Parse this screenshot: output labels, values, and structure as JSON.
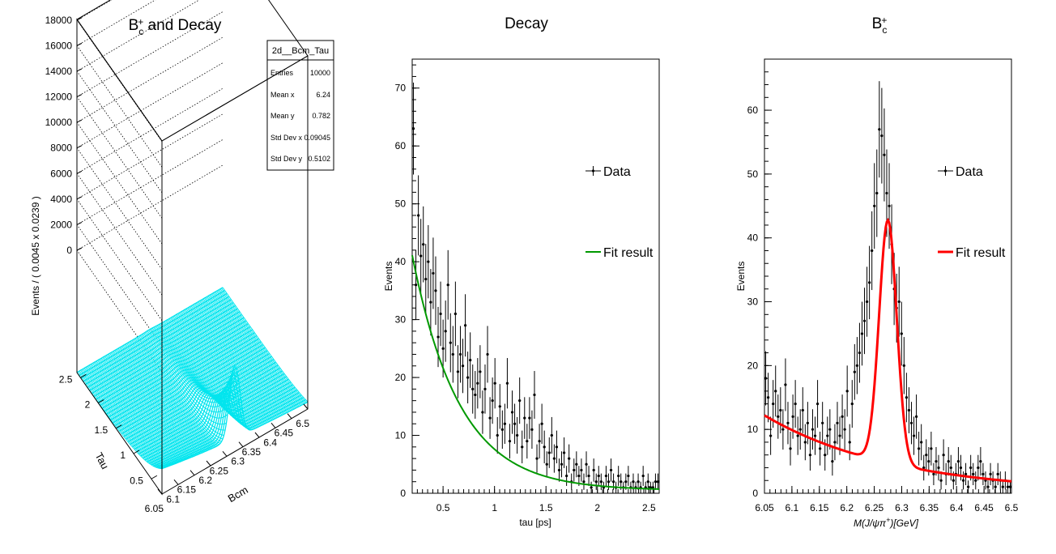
{
  "chart_data": [
    {
      "type": "surface",
      "title": "B_c^+ and Decay",
      "title_base": "B",
      "title_sub": "c",
      "title_sup": "+",
      "title_rest": " and Decay",
      "xlabel": "Bcm",
      "ylabel": "Tau",
      "zlabel": "Events / ( 0.0045 x 0.0239 )",
      "xlim": [
        6.05,
        6.5
      ],
      "ylim": [
        0.2,
        2.6
      ],
      "zlim": [
        0,
        19000
      ],
      "x_ticks": [
        "6.05",
        "6.1",
        "6.15",
        "6.2",
        "6.25",
        "6.3",
        "6.35",
        "6.4",
        "6.45",
        "6.5"
      ],
      "y_ticks": [
        "0.5",
        "1",
        "1.5",
        "2",
        "2.5"
      ],
      "z_ticks": [
        "0",
        "2000",
        "4000",
        "6000",
        "8000",
        "10000",
        "12000",
        "14000",
        "16000",
        "18000"
      ],
      "surface_color": "#00e5ee",
      "peak_x": 6.275,
      "peak_z": 10000,
      "grid": true,
      "stats_box": {
        "name": "2d__Bcm_Tau",
        "rows": [
          {
            "label": "Entries",
            "value": "10000"
          },
          {
            "label": "Mean x",
            "value": "6.24"
          },
          {
            "label": "Mean y",
            "value": "0.782"
          },
          {
            "label": "Std Dev x",
            "value": "0.09045"
          },
          {
            "label": "Std Dev y",
            "value": "0.5102"
          }
        ]
      }
    },
    {
      "type": "scatter",
      "title": "Decay",
      "xlabel": "tau [ps]",
      "ylabel": "Events",
      "xlim": [
        0.2,
        2.6
      ],
      "ylim": [
        0,
        75
      ],
      "x_ticks": [
        0.5,
        1,
        1.5,
        2,
        2.5
      ],
      "y_ticks": [
        0,
        10,
        20,
        30,
        40,
        50,
        60,
        70
      ],
      "grid": false,
      "legend": [
        {
          "label": "Data",
          "style": "points",
          "color": "#000000"
        },
        {
          "label": "Fit result",
          "style": "line",
          "color": "#009900"
        }
      ],
      "series": [
        {
          "name": "Data",
          "x": [
            0.212,
            0.236,
            0.26,
            0.284,
            0.308,
            0.332,
            0.356,
            0.38,
            0.404,
            0.428,
            0.452,
            0.476,
            0.5,
            0.524,
            0.548,
            0.572,
            0.596,
            0.62,
            0.644,
            0.668,
            0.692,
            0.716,
            0.74,
            0.764,
            0.788,
            0.812,
            0.836,
            0.86,
            0.884,
            0.908,
            0.932,
            0.956,
            0.98,
            1.004,
            1.028,
            1.052,
            1.076,
            1.1,
            1.124,
            1.148,
            1.172,
            1.196,
            1.22,
            1.244,
            1.268,
            1.292,
            1.316,
            1.34,
            1.364,
            1.388,
            1.412,
            1.436,
            1.46,
            1.484,
            1.508,
            1.532,
            1.556,
            1.58,
            1.604,
            1.628,
            1.652,
            1.676,
            1.7,
            1.724,
            1.748,
            1.772,
            1.796,
            1.82,
            1.844,
            1.868,
            1.892,
            1.916,
            1.94,
            1.964,
            1.988,
            2.012,
            2.036,
            2.06,
            2.084,
            2.108,
            2.132,
            2.156,
            2.18,
            2.204,
            2.228,
            2.252,
            2.276,
            2.3,
            2.324,
            2.348,
            2.372,
            2.396,
            2.42,
            2.444,
            2.468,
            2.492,
            2.516,
            2.54,
            2.564,
            2.588
          ],
          "y": [
            63,
            36,
            48,
            41,
            43,
            37,
            40,
            33,
            38,
            35,
            27,
            31,
            25,
            28,
            36,
            26,
            24,
            31,
            21,
            24,
            22,
            29,
            20,
            23,
            18,
            17,
            19,
            21,
            14,
            18,
            24,
            13,
            16,
            19,
            10,
            15,
            11,
            12,
            19,
            9,
            14,
            12,
            10,
            16,
            8,
            13,
            9,
            13,
            11,
            17,
            6,
            9,
            12,
            8,
            5,
            7,
            10,
            6,
            8,
            4,
            5,
            7,
            3,
            6,
            2,
            4,
            5,
            3,
            4,
            2,
            5,
            3,
            1,
            4,
            2,
            3,
            2,
            1,
            3,
            2,
            4,
            2,
            1,
            3,
            2,
            1,
            2,
            3,
            1,
            2,
            1,
            2,
            1,
            3,
            1,
            2,
            1,
            1,
            2,
            2
          ]
        },
        {
          "name": "Fit result",
          "model": "exponential",
          "amplitude": 62.8,
          "decay": 0.459,
          "offset": 0.5
        }
      ]
    },
    {
      "type": "scatter",
      "title": "B_c^+",
      "title_base": "B",
      "title_sub": "c",
      "title_sup": "+",
      "xlabel": "M(J/ψπ⁺)[GeV]",
      "xlabel_text": "M(J/ψπ",
      "xlabel_sup": "+",
      "xlabel_end": ")[GeV]",
      "ylabel": "Events",
      "xlim": [
        6.05,
        6.5
      ],
      "ylim": [
        0,
        68
      ],
      "x_ticks": [
        "6.05",
        "6.1",
        "6.15",
        "6.2",
        "6.25",
        "6.3",
        "6.35",
        "6.4",
        "6.45",
        "6.5"
      ],
      "y_ticks": [
        0,
        10,
        20,
        30,
        40,
        50,
        60
      ],
      "grid": false,
      "legend": [
        {
          "label": "Data",
          "style": "points",
          "color": "#000000"
        },
        {
          "label": "Fit result",
          "style": "line",
          "color": "#ff0000"
        }
      ],
      "series": [
        {
          "name": "Data",
          "x": [
            6.05225,
            6.05675,
            6.06125,
            6.06575,
            6.07025,
            6.07475,
            6.07925,
            6.08375,
            6.08825,
            6.09275,
            6.09725,
            6.10175,
            6.10625,
            6.11075,
            6.11525,
            6.11975,
            6.12425,
            6.12875,
            6.13325,
            6.13775,
            6.14225,
            6.14675,
            6.15125,
            6.15575,
            6.16025,
            6.16475,
            6.16925,
            6.17375,
            6.17825,
            6.18275,
            6.18725,
            6.19175,
            6.19625,
            6.20075,
            6.20525,
            6.20975,
            6.21425,
            6.21875,
            6.22325,
            6.22775,
            6.23225,
            6.23675,
            6.24125,
            6.24575,
            6.25025,
            6.25475,
            6.25925,
            6.26375,
            6.26825,
            6.27275,
            6.27725,
            6.28175,
            6.28625,
            6.29075,
            6.29525,
            6.29975,
            6.30425,
            6.30875,
            6.31325,
            6.31775,
            6.32225,
            6.32675,
            6.33125,
            6.33575,
            6.34025,
            6.34475,
            6.34925,
            6.35375,
            6.35825,
            6.36275,
            6.36725,
            6.37175,
            6.37625,
            6.38075,
            6.38525,
            6.38975,
            6.39425,
            6.39875,
            6.40325,
            6.40775,
            6.41225,
            6.41675,
            6.42125,
            6.42575,
            6.43025,
            6.43475,
            6.43925,
            6.44375,
            6.44825,
            6.45275,
            6.45725,
            6.46175,
            6.46625,
            6.47075,
            6.47525,
            6.47975,
            6.48425,
            6.48875,
            6.49325,
            6.49775
          ],
          "y": [
            18,
            15,
            9,
            14,
            16,
            12,
            13,
            10,
            17,
            11,
            7,
            12,
            14,
            9,
            10,
            13,
            8,
            11,
            6,
            10,
            9,
            14,
            7,
            11,
            6,
            9,
            10,
            5,
            8,
            11,
            9,
            12,
            10,
            16,
            8,
            14,
            19,
            20,
            22,
            25,
            27,
            30,
            33,
            38,
            45,
            47,
            57,
            56,
            53,
            47,
            45,
            39,
            32,
            29,
            30,
            25,
            20,
            15,
            13,
            11,
            9,
            12,
            7,
            8,
            4,
            6,
            5,
            7,
            3,
            5,
            4,
            2,
            6,
            3,
            5,
            4,
            2,
            3,
            5,
            4,
            2,
            3,
            1,
            4,
            3,
            2,
            4,
            5,
            3,
            2,
            1,
            3,
            2,
            1,
            3,
            2,
            1,
            2,
            1,
            1
          ]
        },
        {
          "name": "Fit result",
          "model": "gaussian_plus_exponential",
          "mean": 6.275,
          "sigma": 0.016,
          "peak": 38,
          "bkg_amplitude": 12.2,
          "bkg_decay": 0.24,
          "bkg_start": 6.05
        }
      ]
    }
  ]
}
